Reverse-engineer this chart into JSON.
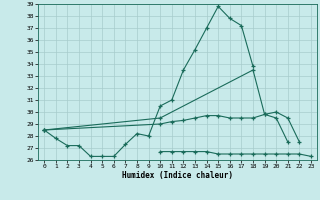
{
  "xlabel": "Humidex (Indice chaleur)",
  "background_color": "#c8eaea",
  "grid_color": "#a8cccc",
  "line_color": "#1a6b5a",
  "xlim": [
    -0.5,
    23.5
  ],
  "ylim": [
    26,
    39
  ],
  "yticks": [
    26,
    27,
    28,
    29,
    30,
    31,
    32,
    33,
    34,
    35,
    36,
    37,
    38,
    39
  ],
  "xticks": [
    0,
    1,
    2,
    3,
    4,
    5,
    6,
    7,
    8,
    9,
    10,
    11,
    12,
    13,
    14,
    15,
    16,
    17,
    18,
    19,
    20,
    21,
    22,
    23
  ],
  "line1_x": [
    0,
    1,
    2,
    3,
    4,
    5,
    6,
    7,
    8,
    9,
    10,
    11,
    12,
    13,
    14,
    15,
    16,
    17,
    18
  ],
  "line1_y": [
    28.5,
    27.8,
    27.2,
    27.2,
    26.3,
    26.3,
    26.3,
    27.3,
    28.2,
    28.0,
    30.5,
    31.0,
    33.5,
    35.2,
    37.0,
    38.8,
    37.8,
    37.2,
    33.8
  ],
  "line2_x": [
    0,
    10,
    18,
    19,
    20,
    21
  ],
  "line2_y": [
    28.5,
    29.5,
    33.5,
    29.8,
    29.5,
    27.5
  ],
  "line3_x": [
    0,
    10,
    11,
    12,
    13,
    14,
    15,
    16,
    17,
    18,
    19,
    20,
    21,
    22
  ],
  "line3_y": [
    28.5,
    29.0,
    29.2,
    29.3,
    29.5,
    29.7,
    29.7,
    29.5,
    29.5,
    29.5,
    29.8,
    30.0,
    29.5,
    27.5
  ],
  "line4_x": [
    10,
    11,
    12,
    13,
    14,
    15,
    16,
    17,
    18,
    19,
    20,
    21,
    22,
    23
  ],
  "line4_y": [
    26.7,
    26.7,
    26.7,
    26.7,
    26.7,
    26.5,
    26.5,
    26.5,
    26.5,
    26.5,
    26.5,
    26.5,
    26.5,
    26.3
  ]
}
